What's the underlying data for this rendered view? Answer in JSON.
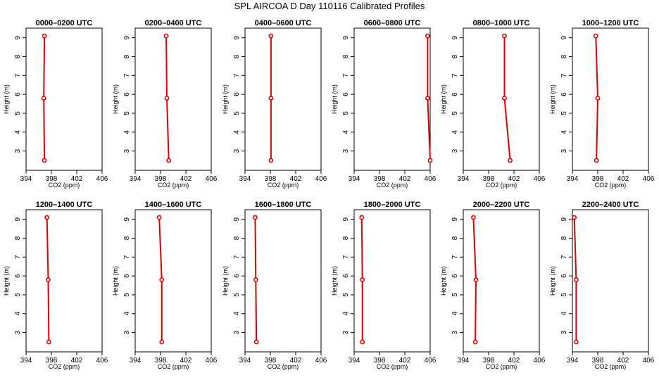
{
  "figure_title": "SPL AIRCOA D  Day 110116  Calibrated Profiles",
  "colors": {
    "series": "#dd0000",
    "axis": "#000000",
    "background": "#ffffff"
  },
  "chart_data": [
    {
      "type": "line",
      "title": "0000–0200 UTC",
      "xlabel": "CO2 (ppm)",
      "ylabel": "Height (m)",
      "xlim": [
        394,
        406
      ],
      "ylim": [
        2.5,
        9.1
      ],
      "xticks": [
        "394",
        "398",
        "402",
        "406"
      ],
      "yticks": [
        "3",
        "4",
        "5",
        "6",
        "7",
        "8",
        "9"
      ],
      "points": [
        {
          "x": 396.9,
          "y": 9.1
        },
        {
          "x": 396.8,
          "y": 5.8
        },
        {
          "x": 396.9,
          "y": 2.5
        }
      ]
    },
    {
      "type": "line",
      "title": "0200–0400 UTC",
      "xlabel": "CO2 (ppm)",
      "ylabel": "Height (m)",
      "xlim": [
        394,
        406
      ],
      "ylim": [
        2.5,
        9.1
      ],
      "xticks": [
        "394",
        "398",
        "402",
        "406"
      ],
      "yticks": [
        "3",
        "4",
        "5",
        "6",
        "7",
        "8",
        "9"
      ],
      "points": [
        {
          "x": 398.9,
          "y": 9.1
        },
        {
          "x": 399.0,
          "y": 5.8
        },
        {
          "x": 399.3,
          "y": 2.5
        }
      ]
    },
    {
      "type": "line",
      "title": "0400–0600 UTC",
      "xlabel": "CO2 (ppm)",
      "ylabel": "Height (m)",
      "xlim": [
        394,
        406
      ],
      "ylim": [
        2.5,
        9.1
      ],
      "xticks": [
        "394",
        "398",
        "402",
        "406"
      ],
      "yticks": [
        "3",
        "4",
        "5",
        "6",
        "7",
        "8",
        "9"
      ],
      "points": [
        {
          "x": 398.1,
          "y": 9.1
        },
        {
          "x": 398.1,
          "y": 5.8
        },
        {
          "x": 398.1,
          "y": 2.5
        }
      ]
    },
    {
      "type": "line",
      "title": "0600–0800 UTC",
      "xlabel": "CO2 (ppm)",
      "ylabel": "Height (m)",
      "xlim": [
        394,
        406
      ],
      "ylim": [
        2.5,
        9.1
      ],
      "xticks": [
        "394",
        "398",
        "402",
        "406"
      ],
      "yticks": [
        "3",
        "4",
        "5",
        "6",
        "7",
        "8",
        "9"
      ],
      "points": [
        {
          "x": 405.6,
          "y": 9.1
        },
        {
          "x": 405.6,
          "y": 5.8
        },
        {
          "x": 406.0,
          "y": 2.5
        }
      ]
    },
    {
      "type": "line",
      "title": "0800–1000 UTC",
      "xlabel": "CO2 (ppm)",
      "ylabel": "Height (m)",
      "xlim": [
        394,
        406
      ],
      "ylim": [
        2.5,
        9.1
      ],
      "xticks": [
        "394",
        "398",
        "402",
        "406"
      ],
      "yticks": [
        "3",
        "4",
        "5",
        "6",
        "7",
        "8",
        "9"
      ],
      "points": [
        {
          "x": 400.5,
          "y": 9.1
        },
        {
          "x": 400.5,
          "y": 5.8
        },
        {
          "x": 401.4,
          "y": 2.5
        }
      ]
    },
    {
      "type": "line",
      "title": "1000–1200 UTC",
      "xlabel": "CO2 (ppm)",
      "ylabel": "Height (m)",
      "xlim": [
        394,
        406
      ],
      "ylim": [
        2.5,
        9.1
      ],
      "xticks": [
        "394",
        "398",
        "402",
        "406"
      ],
      "yticks": [
        "3",
        "4",
        "5",
        "6",
        "7",
        "8",
        "9"
      ],
      "points": [
        {
          "x": 397.7,
          "y": 9.1
        },
        {
          "x": 398.0,
          "y": 5.8
        },
        {
          "x": 397.8,
          "y": 2.5
        }
      ]
    },
    {
      "type": "line",
      "title": "1200–1400 UTC",
      "xlabel": "CO2 (ppm)",
      "ylabel": "Height (m)",
      "xlim": [
        394,
        406
      ],
      "ylim": [
        2.5,
        9.1
      ],
      "xticks": [
        "394",
        "398",
        "402",
        "406"
      ],
      "yticks": [
        "3",
        "4",
        "5",
        "6",
        "7",
        "8",
        "9"
      ],
      "points": [
        {
          "x": 397.3,
          "y": 9.1
        },
        {
          "x": 397.5,
          "y": 5.8
        },
        {
          "x": 397.6,
          "y": 2.5
        }
      ]
    },
    {
      "type": "line",
      "title": "1400–1600 UTC",
      "xlabel": "CO2 (ppm)",
      "ylabel": "Height (m)",
      "xlim": [
        394,
        406
      ],
      "ylim": [
        2.5,
        9.1
      ],
      "xticks": [
        "394",
        "398",
        "402",
        "406"
      ],
      "yticks": [
        "3",
        "4",
        "5",
        "6",
        "7",
        "8",
        "9"
      ],
      "points": [
        {
          "x": 397.8,
          "y": 9.1
        },
        {
          "x": 398.2,
          "y": 5.8
        },
        {
          "x": 398.2,
          "y": 2.5
        }
      ]
    },
    {
      "type": "line",
      "title": "1600–1800 UTC",
      "xlabel": "CO2 (ppm)",
      "ylabel": "Height (m)",
      "xlim": [
        394,
        406
      ],
      "ylim": [
        2.5,
        9.1
      ],
      "xticks": [
        "394",
        "398",
        "402",
        "406"
      ],
      "yticks": [
        "3",
        "4",
        "5",
        "6",
        "7",
        "8",
        "9"
      ],
      "points": [
        {
          "x": 395.6,
          "y": 9.1
        },
        {
          "x": 395.7,
          "y": 5.8
        },
        {
          "x": 395.8,
          "y": 2.5
        }
      ]
    },
    {
      "type": "line",
      "title": "1800–2000 UTC",
      "xlabel": "CO2 (ppm)",
      "ylabel": "Height (m)",
      "xlim": [
        394,
        406
      ],
      "ylim": [
        2.5,
        9.1
      ],
      "xticks": [
        "394",
        "398",
        "402",
        "406"
      ],
      "yticks": [
        "3",
        "4",
        "5",
        "6",
        "7",
        "8",
        "9"
      ],
      "points": [
        {
          "x": 395.2,
          "y": 9.1
        },
        {
          "x": 395.3,
          "y": 5.8
        },
        {
          "x": 395.3,
          "y": 2.5
        }
      ]
    },
    {
      "type": "line",
      "title": "2000–2200 UTC",
      "xlabel": "CO2 (ppm)",
      "ylabel": "Height (m)",
      "xlim": [
        394,
        406
      ],
      "ylim": [
        2.5,
        9.1
      ],
      "xticks": [
        "394",
        "398",
        "402",
        "406"
      ],
      "yticks": [
        "3",
        "4",
        "5",
        "6",
        "7",
        "8",
        "9"
      ],
      "points": [
        {
          "x": 395.6,
          "y": 9.1
        },
        {
          "x": 396.0,
          "y": 5.8
        },
        {
          "x": 395.9,
          "y": 2.5
        }
      ]
    },
    {
      "type": "line",
      "title": "2200–2400 UTC",
      "xlabel": "CO2 (ppm)",
      "ylabel": "Height (m)",
      "xlim": [
        394,
        406
      ],
      "ylim": [
        2.5,
        9.1
      ],
      "xticks": [
        "394",
        "398",
        "402",
        "406"
      ],
      "yticks": [
        "3",
        "4",
        "5",
        "6",
        "7",
        "8",
        "9"
      ],
      "points": [
        {
          "x": 394.3,
          "y": 9.1
        },
        {
          "x": 394.6,
          "y": 5.8
        },
        {
          "x": 394.6,
          "y": 2.5
        }
      ]
    }
  ]
}
